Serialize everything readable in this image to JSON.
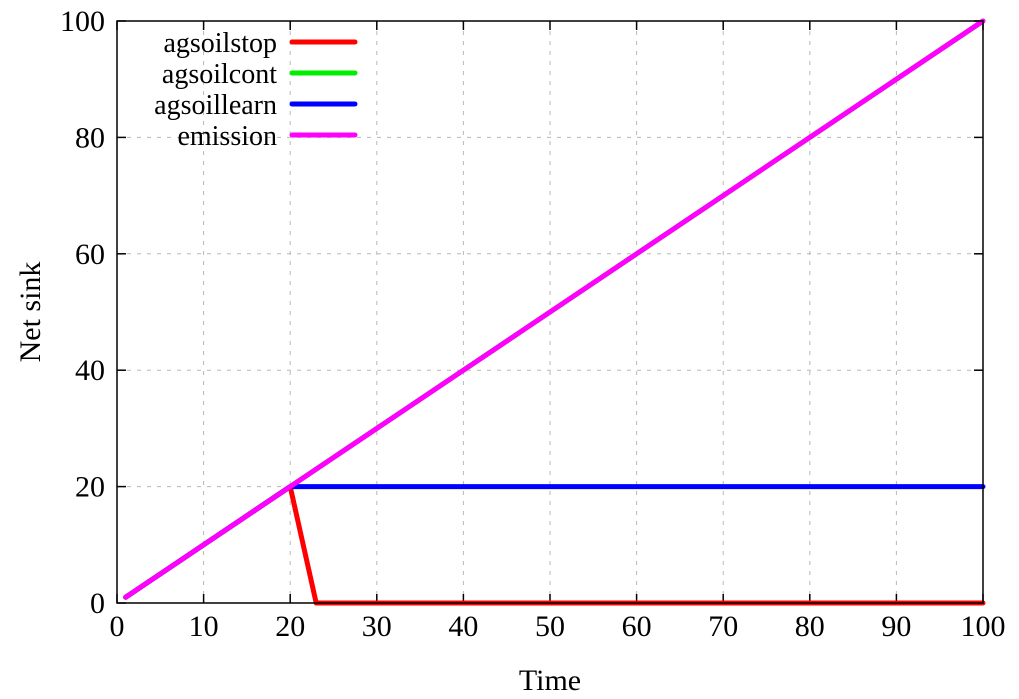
{
  "chart_data": {
    "type": "line",
    "title": "",
    "xlabel": "Time",
    "ylabel": "Net sink",
    "xlim": [
      0,
      100
    ],
    "ylim": [
      0,
      100
    ],
    "x_ticks": [
      0,
      10,
      20,
      30,
      40,
      50,
      60,
      70,
      80,
      90,
      100
    ],
    "y_ticks": [
      0,
      20,
      40,
      60,
      80,
      100
    ],
    "grid": true,
    "legend_position": "top-left",
    "series": [
      {
        "name": "agsoilstop",
        "color": "#ff0000",
        "x": [
          1,
          20,
          23,
          100
        ],
        "y": [
          1,
          20,
          0,
          0
        ]
      },
      {
        "name": "agsoilcont",
        "color": "#00ee00",
        "x": [
          1,
          20,
          100
        ],
        "y": [
          1,
          20,
          100
        ]
      },
      {
        "name": "agsoillearn",
        "color": "#0000ff",
        "x": [
          1,
          20,
          100
        ],
        "y": [
          1,
          20,
          20
        ]
      },
      {
        "name": "emission",
        "color": "#ff00ff",
        "x": [
          1,
          100
        ],
        "y": [
          1,
          100
        ]
      }
    ]
  }
}
